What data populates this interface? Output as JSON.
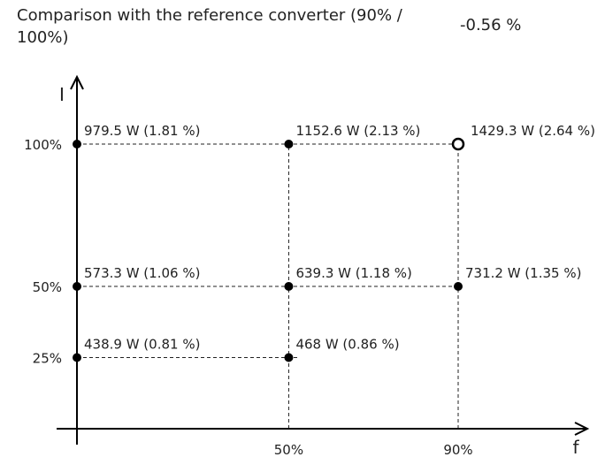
{
  "header": {
    "comparison_label": "Comparison with the reference converter (90% / 100%)",
    "comparison_value": "-0.56 %"
  },
  "chart_data": {
    "type": "scatter",
    "title": "",
    "xlabel": "f",
    "ylabel": "I",
    "x_ticks": [
      {
        "value": 50,
        "label": "50%"
      },
      {
        "value": 90,
        "label": "90%"
      }
    ],
    "y_ticks": [
      {
        "value": 25,
        "label": "25%"
      },
      {
        "value": 50,
        "label": "50%"
      },
      {
        "value": 100,
        "label": "100%"
      }
    ],
    "grid": "dashed",
    "points": [
      {
        "f": 0,
        "i": 100,
        "label": "979.5 W (1.81 %)",
        "marker": "filled"
      },
      {
        "f": 50,
        "i": 100,
        "label": "1152.6 W (2.13 %)",
        "marker": "filled"
      },
      {
        "f": 90,
        "i": 100,
        "label": "1429.3 W (2.64 %)",
        "marker": "open"
      },
      {
        "f": 0,
        "i": 50,
        "label": "573.3 W (1.06 %)",
        "marker": "filled"
      },
      {
        "f": 50,
        "i": 50,
        "label": "639.3 W (1.18 %)",
        "marker": "filled"
      },
      {
        "f": 90,
        "i": 50,
        "label": "731.2 W (1.35 %)",
        "marker": "filled"
      },
      {
        "f": 0,
        "i": 25,
        "label": "438.9 W (0.81 %)",
        "marker": "filled"
      },
      {
        "f": 50,
        "i": 25,
        "label": "468 W (0.86 %)",
        "marker": "filled"
      }
    ]
  }
}
